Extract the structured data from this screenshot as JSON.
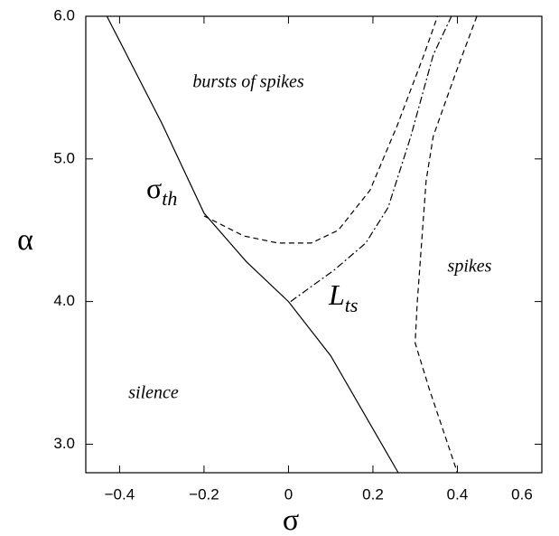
{
  "chart_data": {
    "type": "line",
    "xlabel": "σ",
    "ylabel": "α",
    "xlim": [
      -0.48,
      0.6
    ],
    "ylim": [
      2.8,
      6.0
    ],
    "xticks": [
      {
        "value": -0.4,
        "label": "−0.4"
      },
      {
        "value": -0.2,
        "label": "−0.2"
      },
      0,
      0.2,
      0.4,
      0.6
    ],
    "yticks": [
      {
        "value": 3.0,
        "label": "3.0"
      },
      {
        "value": 4.0,
        "label": "4.0"
      },
      {
        "value": 5.0,
        "label": "5.0"
      },
      {
        "value": 6.0,
        "label": "6.0"
      }
    ],
    "annotations": {
      "bursts": "bursts of spikes",
      "spikes": "spikes",
      "silence": "silence",
      "sigma_th": {
        "symbol": "σ",
        "sub": "th"
      },
      "l_ts": {
        "symbol": "L",
        "sub": "ts"
      }
    },
    "series": [
      {
        "color": "#000000",
        "dash": "solid",
        "x": [
          -0.43,
          -0.3,
          -0.2,
          -0.1,
          0.0,
          0.1,
          0.26
        ],
        "values": [
          6.0,
          5.25,
          4.62,
          4.28,
          4.0,
          3.62,
          2.8
        ]
      },
      {
        "color": "#000000",
        "dash": "dashed",
        "x": [
          -0.2,
          -0.106,
          -0.025,
          0.054,
          0.118,
          0.193,
          0.257,
          0.321,
          0.353
        ],
        "values": [
          4.6,
          4.46,
          4.41,
          4.41,
          4.5,
          4.78,
          5.23,
          5.73,
          6.0
        ]
      },
      {
        "color": "#000000",
        "dash": "dashdot",
        "x": [
          0.005,
          0.108,
          0.183,
          0.236,
          0.29,
          0.343,
          0.386
        ],
        "values": [
          4.0,
          4.22,
          4.41,
          4.66,
          5.16,
          5.73,
          6.0
        ]
      },
      {
        "color": "#000000",
        "dash": "dashed",
        "x": [
          0.446,
          0.397,
          0.343,
          0.326,
          0.305,
          0.3,
          0.333,
          0.4
        ],
        "values": [
          6.0,
          5.61,
          5.16,
          4.85,
          4.0,
          3.71,
          3.39,
          2.8
        ]
      }
    ]
  }
}
